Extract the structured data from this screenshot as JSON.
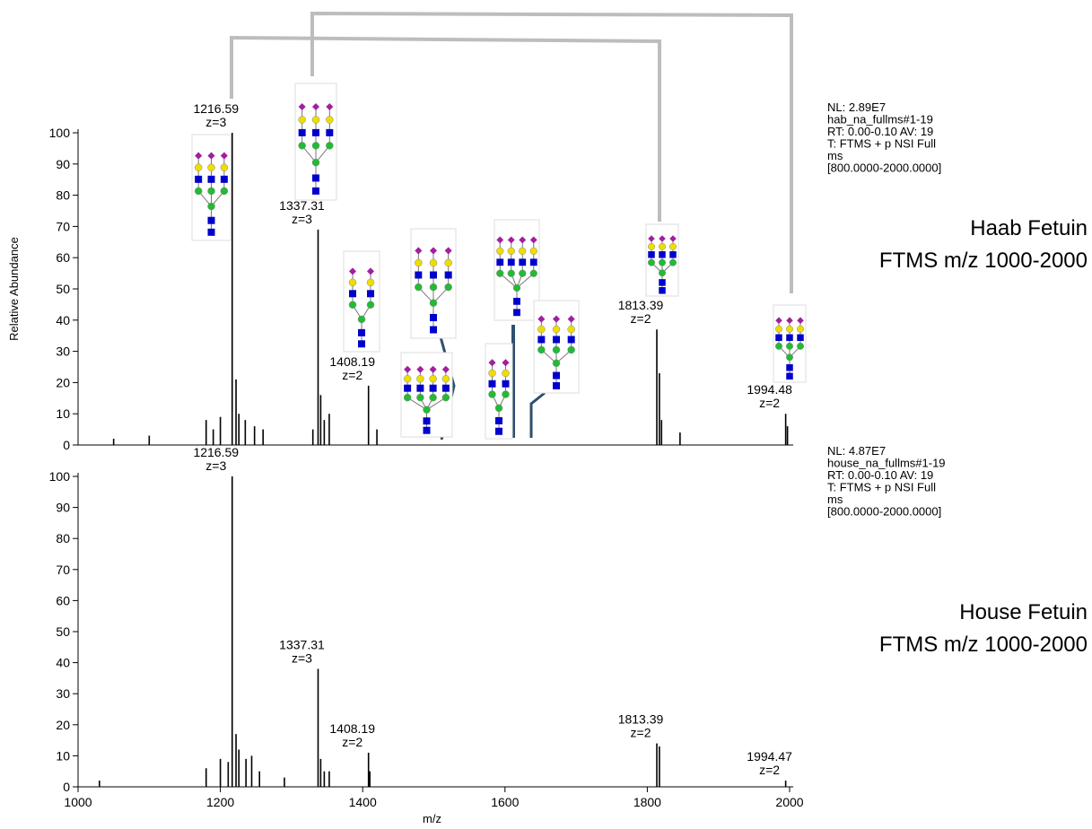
{
  "chart_data": [
    {
      "type": "spectrum",
      "ylabel": "Relative Abundance",
      "xlim": [
        1000,
        2000
      ],
      "ylim": [
        0,
        100
      ],
      "yticks": [
        0,
        10,
        20,
        30,
        40,
        50,
        60,
        70,
        80,
        90,
        100
      ],
      "color": "#000000",
      "x": [
        1050,
        1100,
        1180,
        1190,
        1200,
        1216.59,
        1222,
        1226,
        1235,
        1248,
        1260,
        1330,
        1337.31,
        1341,
        1346,
        1353,
        1408.19,
        1420,
        1813.39,
        1817,
        1820,
        1846,
        1994.48,
        1997
      ],
      "values": [
        2,
        3,
        8,
        5,
        9,
        100,
        21,
        10,
        8,
        6,
        5,
        5,
        69,
        16,
        8,
        10,
        19,
        5,
        37,
        23,
        8,
        4,
        10,
        6
      ],
      "charge_labels": [
        null,
        null,
        null,
        null,
        null,
        "z=3",
        null,
        null,
        null,
        null,
        null,
        null,
        "z=3",
        null,
        null,
        null,
        "z=2",
        null,
        "z=2",
        null,
        null,
        null,
        "z=2",
        null
      ],
      "info": [
        "NL: 2.89E7",
        "hab_na_fullms#1-19",
        "RT: 0.00-0.10  AV: 19",
        "T: FTMS + p NSI Full",
        "ms",
        "[800.0000-2000.0000]"
      ],
      "sample": [
        "Haab Fetuin",
        "FTMS m/z 1000-2000"
      ]
    },
    {
      "type": "spectrum",
      "xlabel": "m/z",
      "xlim": [
        1000,
        2000
      ],
      "xticks": [
        1000,
        1200,
        1400,
        1600,
        1800,
        2000
      ],
      "ylim": [
        0,
        100
      ],
      "yticks": [
        0,
        10,
        20,
        30,
        40,
        50,
        60,
        70,
        80,
        90,
        100
      ],
      "color": "#000000",
      "x": [
        1030,
        1180,
        1200,
        1211,
        1216.59,
        1222,
        1226,
        1236,
        1244,
        1255,
        1290,
        1337.31,
        1341,
        1346,
        1353,
        1408.19,
        1410,
        1813.39,
        1817,
        1994.47
      ],
      "values": [
        2,
        6,
        9,
        8,
        100,
        17,
        12,
        9,
        10,
        5,
        3,
        38,
        9,
        5,
        5,
        11,
        5,
        14,
        13,
        2
      ],
      "charge_labels": [
        null,
        null,
        null,
        null,
        "z=3",
        null,
        null,
        null,
        null,
        null,
        null,
        "z=3",
        null,
        null,
        null,
        "z=2",
        null,
        "z=2",
        null,
        "z=2"
      ],
      "info": [
        "NL: 4.87E7",
        "house_na_fullms#1-19",
        " RT: 0.00-0.10  AV: 19",
        "T: FTMS + p NSI Full",
        "ms",
        "[800.0000-2000.0000]"
      ],
      "sample": [
        "House Fetuin",
        "FTMS m/z 1000-2000"
      ]
    }
  ]
}
